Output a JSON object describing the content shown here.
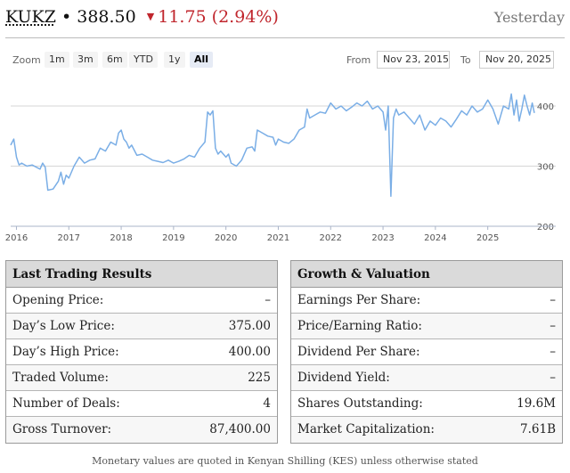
{
  "header": {
    "symbol": "KUKZ",
    "separator": "•",
    "price": "388.50",
    "change_arrow": "▼",
    "change": "11.75 (2.94%)",
    "as_of": "Yesterday"
  },
  "controls": {
    "zoom_label": "Zoom",
    "zoom_buttons": [
      "1m",
      "3m",
      "6m",
      "YTD",
      "1y",
      "All"
    ],
    "active_zoom": "All",
    "from_label": "From",
    "from_value": "Nov 23, 2015",
    "to_label": "To",
    "to_value": "Nov 20, 2025"
  },
  "chart_data": {
    "type": "line",
    "x_tick_labels": [
      "2016",
      "2017",
      "2018",
      "2019",
      "2020",
      "2021",
      "2022",
      "2023",
      "2024",
      "2025"
    ],
    "y_tick_labels": [
      "200",
      "300",
      "400"
    ],
    "ylim": [
      200,
      440
    ],
    "xlim": [
      2015.89,
      2025.89
    ],
    "grid": "horizontal",
    "line_color": "#7aaee6",
    "series": [
      {
        "x": [
          2015.89,
          2015.95,
          2016.0,
          2016.05,
          2016.1,
          2016.2,
          2016.3,
          2016.45,
          2016.5,
          2016.55,
          2016.6,
          2016.7,
          2016.8,
          2016.85,
          2016.9,
          2016.95,
          2017.0,
          2017.1,
          2017.2,
          2017.3,
          2017.4,
          2017.5,
          2017.6,
          2017.7,
          2017.8,
          2017.9,
          2017.95,
          2018.0,
          2018.05,
          2018.1,
          2018.15,
          2018.2,
          2018.3,
          2018.4,
          2018.5,
          2018.6,
          2018.7,
          2018.8,
          2018.9,
          2019.0,
          2019.1,
          2019.2,
          2019.3,
          2019.4,
          2019.5,
          2019.6,
          2019.65,
          2019.7,
          2019.75,
          2019.8,
          2019.85,
          2019.9,
          2020.0,
          2020.05,
          2020.1,
          2020.2,
          2020.3,
          2020.4,
          2020.5,
          2020.55,
          2020.6,
          2020.7,
          2020.8,
          2020.9,
          2020.95,
          2021.0,
          2021.1,
          2021.2,
          2021.3,
          2021.4,
          2021.5,
          2021.55,
          2021.6,
          2021.7,
          2021.8,
          2021.9,
          2022.0,
          2022.1,
          2022.2,
          2022.3,
          2022.4,
          2022.5,
          2022.6,
          2022.7,
          2022.8,
          2022.9,
          2023.0,
          2023.05,
          2023.1,
          2023.15,
          2023.2,
          2023.25,
          2023.3,
          2023.4,
          2023.5,
          2023.6,
          2023.7,
          2023.8,
          2023.9,
          2024.0,
          2024.1,
          2024.2,
          2024.3,
          2024.4,
          2024.5,
          2024.6,
          2024.7,
          2024.8,
          2024.9,
          2025.0,
          2025.1,
          2025.2,
          2025.3,
          2025.4,
          2025.45,
          2025.5,
          2025.55,
          2025.6,
          2025.65,
          2025.7,
          2025.75,
          2025.8,
          2025.85,
          2025.89
        ],
        "y": [
          335,
          345,
          315,
          302,
          305,
          300,
          302,
          295,
          305,
          298,
          260,
          262,
          275,
          290,
          270,
          285,
          280,
          300,
          315,
          305,
          310,
          312,
          330,
          325,
          340,
          335,
          355,
          360,
          345,
          340,
          330,
          335,
          318,
          320,
          315,
          310,
          308,
          306,
          310,
          305,
          308,
          312,
          318,
          315,
          330,
          340,
          390,
          385,
          392,
          330,
          320,
          325,
          315,
          320,
          305,
          300,
          310,
          330,
          332,
          325,
          360,
          355,
          350,
          348,
          335,
          345,
          340,
          338,
          345,
          360,
          365,
          395,
          380,
          385,
          390,
          388,
          405,
          395,
          400,
          392,
          398,
          405,
          400,
          408,
          395,
          400,
          390,
          360,
          400,
          250,
          380,
          395,
          385,
          390,
          380,
          370,
          385,
          360,
          375,
          368,
          380,
          375,
          365,
          378,
          392,
          385,
          400,
          390,
          395,
          410,
          395,
          370,
          400,
          395,
          420,
          385,
          410,
          375,
          395,
          418,
          400,
          385,
          405,
          388.5
        ]
      }
    ]
  },
  "left_table": {
    "title": "Last Trading Results",
    "rows": [
      {
        "label": "Opening Price:",
        "value": "–"
      },
      {
        "label": "Day’s Low Price:",
        "value": "375.00"
      },
      {
        "label": "Day’s High Price:",
        "value": "400.00"
      },
      {
        "label": "Traded Volume:",
        "value": "225"
      },
      {
        "label": "Number of Deals:",
        "value": "4"
      },
      {
        "label": "Gross Turnover:",
        "value": "87,400.00"
      }
    ]
  },
  "right_table": {
    "title": "Growth & Valuation",
    "rows": [
      {
        "label": "Earnings Per Share:",
        "value": "–"
      },
      {
        "label": "Price/Earning Ratio:",
        "value": "–"
      },
      {
        "label": "Dividend Per Share:",
        "value": "–"
      },
      {
        "label": "Dividend Yield:",
        "value": "–"
      },
      {
        "label": "Shares Outstanding:",
        "value": "19.6M"
      },
      {
        "label": "Market Capitalization:",
        "value": "7.61B"
      }
    ]
  },
  "footnote": "Monetary values are quoted in Kenyan Shilling (KES) unless otherwise stated"
}
